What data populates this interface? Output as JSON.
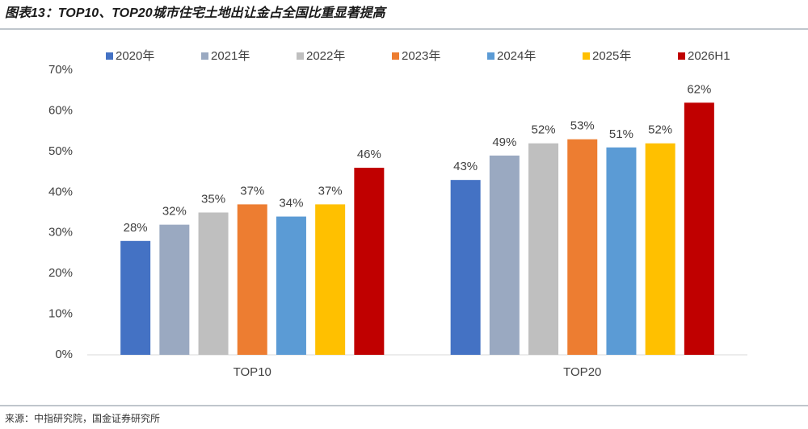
{
  "chart_data": {
    "type": "bar",
    "title": "图表13：TOP10、TOP20城市住宅土地出让金占全国比重显著提高",
    "source": "来源：中指研究院，国金证券研究所",
    "categories": [
      "TOP10",
      "TOP20"
    ],
    "series": [
      {
        "name": "2020年",
        "color": "#4472c4",
        "values": [
          28,
          43
        ],
        "value_labels": [
          "28%",
          "43%"
        ]
      },
      {
        "name": "2021年",
        "color": "#9aa9c1",
        "values": [
          32,
          49
        ],
        "value_labels": [
          "32%",
          "49%"
        ]
      },
      {
        "name": "2022年",
        "color": "#bfbfbf",
        "values": [
          35,
          52
        ],
        "value_labels": [
          "35%",
          "52%"
        ]
      },
      {
        "name": "2023年",
        "color": "#ed7d31",
        "values": [
          37,
          53
        ],
        "value_labels": [
          "37%",
          "53%"
        ]
      },
      {
        "name": "2024年",
        "color": "#5b9bd5",
        "values": [
          34,
          51
        ],
        "value_labels": [
          "34%",
          "51%"
        ]
      },
      {
        "name": "2025年",
        "color": "#ffc000",
        "values": [
          37,
          52
        ],
        "value_labels": [
          "37%",
          "52%"
        ]
      },
      {
        "name": "2026H1",
        "color": "#c00000",
        "values": [
          46,
          62
        ],
        "value_labels": [
          "46%",
          "62%"
        ]
      }
    ],
    "ylim": [
      0,
      70
    ],
    "yticks": [
      {
        "value": 0,
        "label": "0%"
      },
      {
        "value": 10,
        "label": "10%"
      },
      {
        "value": 20,
        "label": "20%"
      },
      {
        "value": 30,
        "label": "30%"
      },
      {
        "value": 40,
        "label": "40%"
      },
      {
        "value": 50,
        "label": "50%"
      },
      {
        "value": 60,
        "label": "60%"
      },
      {
        "value": 70,
        "label": "70%"
      }
    ],
    "grid": false,
    "legend": "top"
  }
}
